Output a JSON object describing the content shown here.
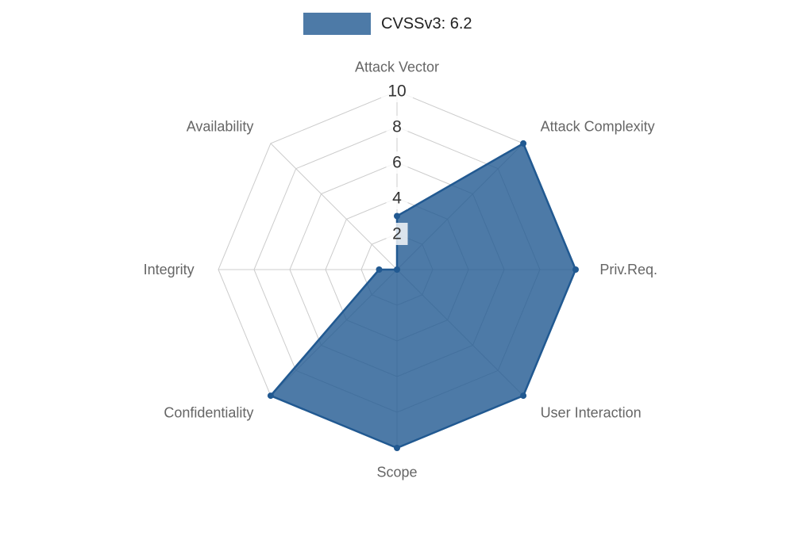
{
  "legend": {
    "series_label": "CVSSv3: 6.2"
  },
  "chart_data": {
    "type": "radar",
    "title": "CVSSv3: 6.2",
    "categories": [
      "Attack Vector",
      "Attack Complexity",
      "Priv.Req.",
      "User Interaction",
      "Scope",
      "Confidentiality",
      "Integrity",
      "Availability"
    ],
    "series": [
      {
        "name": "CVSSv3: 6.2",
        "values": [
          3,
          10,
          10,
          10,
          10,
          10,
          1,
          0
        ]
      }
    ],
    "ylim": [
      0,
      10
    ],
    "yticks": [
      2,
      4,
      6,
      8,
      10
    ],
    "grid": true,
    "legend_position": "top",
    "colors": {
      "series": "#215991",
      "series_fill_opacity": 0.8,
      "grid": "#cccccc",
      "axis_label": "#666666",
      "tick_label": "#333333",
      "legend_text": "#222222",
      "tick_bg": "#ffffff",
      "background": "#ffffff"
    }
  }
}
